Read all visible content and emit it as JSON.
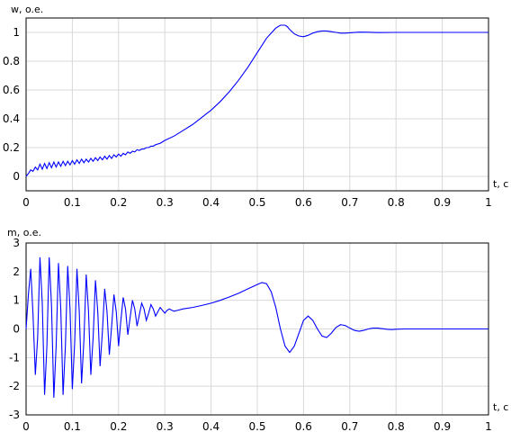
{
  "chart_data": [
    {
      "type": "line",
      "ylabel": "w, o.e.",
      "xlabel": "t, c",
      "xlim": [
        0,
        1
      ],
      "ylim": [
        -0.1,
        1.1
      ],
      "xticks": [
        "0",
        "0.1",
        "0.2",
        "0.3",
        "0.4",
        "0.5",
        "0.6",
        "0.7",
        "0.8",
        "0.9",
        "1"
      ],
      "yticks": [
        "0",
        "0.2",
        "0.4",
        "0.6",
        "0.8",
        "1"
      ],
      "grid": true,
      "color": "#0000ff",
      "series": [
        {
          "x": [
            0,
            0.005,
            0.01,
            0.015,
            0.02,
            0.025,
            0.03,
            0.035,
            0.04,
            0.045,
            0.05,
            0.055,
            0.06,
            0.065,
            0.07,
            0.075,
            0.08,
            0.085,
            0.09,
            0.095,
            0.1,
            0.105,
            0.11,
            0.115,
            0.12,
            0.125,
            0.13,
            0.135,
            0.14,
            0.145,
            0.15,
            0.155,
            0.16,
            0.165,
            0.17,
            0.175,
            0.18,
            0.185,
            0.19,
            0.195,
            0.2,
            0.205,
            0.21,
            0.215,
            0.22,
            0.225,
            0.23,
            0.235,
            0.24,
            0.245,
            0.25,
            0.255,
            0.26,
            0.265,
            0.27,
            0.275,
            0.28,
            0.285,
            0.29,
            0.295,
            0.3,
            0.32,
            0.34,
            0.36,
            0.38,
            0.4,
            0.42,
            0.44,
            0.46,
            0.48,
            0.5,
            0.52,
            0.54,
            0.55,
            0.56,
            0.565,
            0.57,
            0.58,
            0.59,
            0.6,
            0.61,
            0.62,
            0.63,
            0.64,
            0.65,
            0.66,
            0.67,
            0.68,
            0.69,
            0.7,
            0.72,
            0.74,
            0.76,
            0.8,
            0.85,
            0.9,
            0.95,
            1.0
          ],
          "y": [
            0.0,
            0.02,
            0.045,
            0.035,
            0.065,
            0.045,
            0.085,
            0.05,
            0.09,
            0.055,
            0.095,
            0.06,
            0.1,
            0.065,
            0.1,
            0.07,
            0.105,
            0.075,
            0.105,
            0.08,
            0.11,
            0.085,
            0.115,
            0.09,
            0.12,
            0.095,
            0.12,
            0.1,
            0.125,
            0.105,
            0.13,
            0.11,
            0.135,
            0.115,
            0.14,
            0.12,
            0.145,
            0.125,
            0.15,
            0.135,
            0.155,
            0.14,
            0.16,
            0.15,
            0.17,
            0.16,
            0.175,
            0.17,
            0.185,
            0.18,
            0.19,
            0.19,
            0.2,
            0.2,
            0.21,
            0.21,
            0.22,
            0.225,
            0.23,
            0.24,
            0.25,
            0.28,
            0.32,
            0.36,
            0.41,
            0.46,
            0.52,
            0.59,
            0.67,
            0.76,
            0.86,
            0.96,
            1.03,
            1.05,
            1.05,
            1.04,
            1.02,
            0.99,
            0.975,
            0.97,
            0.98,
            0.995,
            1.005,
            1.01,
            1.01,
            1.005,
            1.0,
            0.995,
            0.995,
            0.997,
            1.002,
            1.001,
            0.999,
            1.0,
            1.0,
            1.0,
            1.0,
            1.0
          ]
        }
      ]
    },
    {
      "type": "line",
      "ylabel": "m, o.e.",
      "xlabel": "t, c",
      "xlim": [
        0,
        1
      ],
      "ylim": [
        -3,
        3
      ],
      "xticks": [
        "0",
        "0.1",
        "0.2",
        "0.3",
        "0.4",
        "0.5",
        "0.6",
        "0.7",
        "0.8",
        "0.9",
        "1"
      ],
      "yticks": [
        "-3",
        "-2",
        "-1",
        "0",
        "1",
        "2",
        "3"
      ],
      "grid": true,
      "color": "#0000ff",
      "series": [
        {
          "x": [
            0,
            0.005,
            0.01,
            0.015,
            0.02,
            0.025,
            0.03,
            0.035,
            0.04,
            0.045,
            0.05,
            0.055,
            0.06,
            0.065,
            0.07,
            0.075,
            0.08,
            0.085,
            0.09,
            0.095,
            0.1,
            0.105,
            0.11,
            0.115,
            0.12,
            0.125,
            0.13,
            0.135,
            0.14,
            0.145,
            0.15,
            0.155,
            0.16,
            0.165,
            0.17,
            0.175,
            0.18,
            0.185,
            0.19,
            0.195,
            0.2,
            0.205,
            0.21,
            0.215,
            0.22,
            0.225,
            0.23,
            0.235,
            0.24,
            0.245,
            0.25,
            0.255,
            0.26,
            0.265,
            0.27,
            0.275,
            0.28,
            0.285,
            0.29,
            0.295,
            0.3,
            0.305,
            0.31,
            0.315,
            0.32,
            0.33,
            0.34,
            0.36,
            0.38,
            0.4,
            0.42,
            0.44,
            0.46,
            0.48,
            0.5,
            0.51,
            0.52,
            0.53,
            0.54,
            0.55,
            0.56,
            0.57,
            0.58,
            0.59,
            0.6,
            0.61,
            0.62,
            0.63,
            0.64,
            0.65,
            0.66,
            0.67,
            0.68,
            0.69,
            0.7,
            0.71,
            0.72,
            0.73,
            0.74,
            0.75,
            0.76,
            0.77,
            0.78,
            0.79,
            0.8,
            0.82,
            0.85,
            0.9,
            0.95,
            1.0
          ],
          "y": [
            0.0,
            1.2,
            2.1,
            0.5,
            -1.6,
            -0.3,
            2.5,
            0.9,
            -2.3,
            -0.6,
            2.5,
            0.8,
            -2.4,
            -0.6,
            2.3,
            0.7,
            -2.3,
            -0.6,
            2.2,
            0.7,
            -2.1,
            -0.5,
            2.1,
            0.6,
            -1.9,
            -0.4,
            1.9,
            0.6,
            -1.6,
            -0.3,
            1.7,
            0.6,
            -1.3,
            -0.1,
            1.4,
            0.6,
            -0.9,
            0.1,
            1.2,
            0.6,
            -0.6,
            0.3,
            1.1,
            0.7,
            -0.2,
            0.4,
            1.0,
            0.7,
            0.1,
            0.5,
            0.9,
            0.7,
            0.3,
            0.55,
            0.85,
            0.7,
            0.45,
            0.6,
            0.75,
            0.65,
            0.55,
            0.65,
            0.7,
            0.65,
            0.62,
            0.66,
            0.7,
            0.75,
            0.82,
            0.9,
            1.0,
            1.12,
            1.25,
            1.4,
            1.55,
            1.62,
            1.58,
            1.3,
            0.75,
            0.0,
            -0.6,
            -0.82,
            -0.6,
            -0.15,
            0.3,
            0.45,
            0.3,
            0.0,
            -0.25,
            -0.3,
            -0.15,
            0.05,
            0.15,
            0.12,
            0.03,
            -0.05,
            -0.08,
            -0.05,
            0.0,
            0.03,
            0.03,
            0.01,
            -0.01,
            -0.02,
            -0.01,
            0.0,
            0.0,
            0.0,
            0.0,
            0.0
          ]
        }
      ]
    }
  ]
}
